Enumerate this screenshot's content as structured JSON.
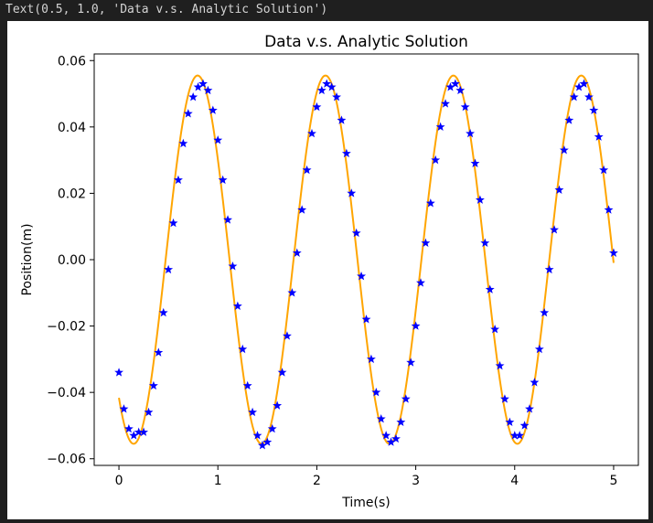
{
  "output": {
    "repr_text": "Text(0.5, 1.0, 'Data v.s. Analytic Solution')"
  },
  "chart_data": {
    "type": "scatter",
    "title": "Data v.s. Analytic Solution",
    "xlabel": "Time(s)",
    "ylabel": "Position(m)",
    "xlim": [
      -0.25,
      5.25
    ],
    "ylim": [
      -0.062,
      0.062
    ],
    "xticks": [
      0,
      1,
      2,
      3,
      4,
      5
    ],
    "xtick_labels": [
      "0",
      "1",
      "2",
      "3",
      "4",
      "5"
    ],
    "yticks": [
      -0.06,
      -0.04,
      -0.02,
      0.0,
      0.02,
      0.04,
      0.06
    ],
    "ytick_labels": [
      "−0.06",
      "−0.04",
      "−0.02",
      "0.00",
      "0.02",
      "0.04",
      "0.06"
    ],
    "grid": false,
    "colors": {
      "data": "#0000ff",
      "analytic": "#ffa500",
      "axes": "#000000"
    },
    "series": [
      {
        "kind": "markers",
        "marker": "star",
        "x": [
          0.0,
          0.05,
          0.1,
          0.15,
          0.2,
          0.25,
          0.3,
          0.35,
          0.4,
          0.45,
          0.5,
          0.55,
          0.6,
          0.65,
          0.7,
          0.75,
          0.8,
          0.85,
          0.9,
          0.95,
          1.0,
          1.05,
          1.1,
          1.15,
          1.2,
          1.25,
          1.3,
          1.35,
          1.4,
          1.45,
          1.5,
          1.55,
          1.6,
          1.65,
          1.7,
          1.75,
          1.8,
          1.85,
          1.9,
          1.95,
          2.0,
          2.05,
          2.1,
          2.15,
          2.2,
          2.25,
          2.3,
          2.35,
          2.4,
          2.45,
          2.5,
          2.55,
          2.6,
          2.65,
          2.7,
          2.75,
          2.8,
          2.85,
          2.9,
          2.95,
          3.0,
          3.05,
          3.1,
          3.15,
          3.2,
          3.25,
          3.3,
          3.35,
          3.4,
          3.45,
          3.5,
          3.55,
          3.6,
          3.65,
          3.7,
          3.75,
          3.8,
          3.85,
          3.9,
          3.95,
          4.0,
          4.05,
          4.1,
          4.15,
          4.2,
          4.25,
          4.3,
          4.35,
          4.4,
          4.45,
          4.5,
          4.55,
          4.6,
          4.65,
          4.7,
          4.75,
          4.8,
          4.85,
          4.9,
          4.95,
          5.0
        ],
        "y": [
          -0.034,
          -0.045,
          -0.051,
          -0.053,
          -0.052,
          -0.052,
          -0.046,
          -0.038,
          -0.028,
          -0.016,
          -0.003,
          0.011,
          0.024,
          0.035,
          0.044,
          0.049,
          0.052,
          0.053,
          0.051,
          0.045,
          0.036,
          0.024,
          0.012,
          -0.002,
          -0.014,
          -0.027,
          -0.038,
          -0.046,
          -0.053,
          -0.056,
          -0.055,
          -0.051,
          -0.044,
          -0.034,
          -0.023,
          -0.01,
          0.002,
          0.015,
          0.027,
          0.038,
          0.046,
          0.051,
          0.053,
          0.052,
          0.049,
          0.042,
          0.032,
          0.02,
          0.008,
          -0.005,
          -0.018,
          -0.03,
          -0.04,
          -0.048,
          -0.053,
          -0.055,
          -0.054,
          -0.049,
          -0.042,
          -0.031,
          -0.02,
          -0.007,
          0.005,
          0.017,
          0.03,
          0.04,
          0.047,
          0.052,
          0.053,
          0.051,
          0.046,
          0.038,
          0.029,
          0.018,
          0.005,
          -0.009,
          -0.021,
          -0.032,
          -0.042,
          -0.049,
          -0.053,
          -0.053,
          -0.05,
          -0.045,
          -0.037,
          -0.027,
          -0.016,
          -0.003,
          0.009,
          0.021,
          0.033,
          0.042,
          0.049,
          0.052,
          0.053,
          0.049,
          0.045,
          0.037,
          0.027,
          0.015,
          0.002
        ]
      },
      {
        "kind": "curve",
        "amplitude": 0.0555,
        "omega": 4.8605,
        "phase": -0.723,
        "t_start": 0.0,
        "t_end": 5.0
      }
    ]
  }
}
